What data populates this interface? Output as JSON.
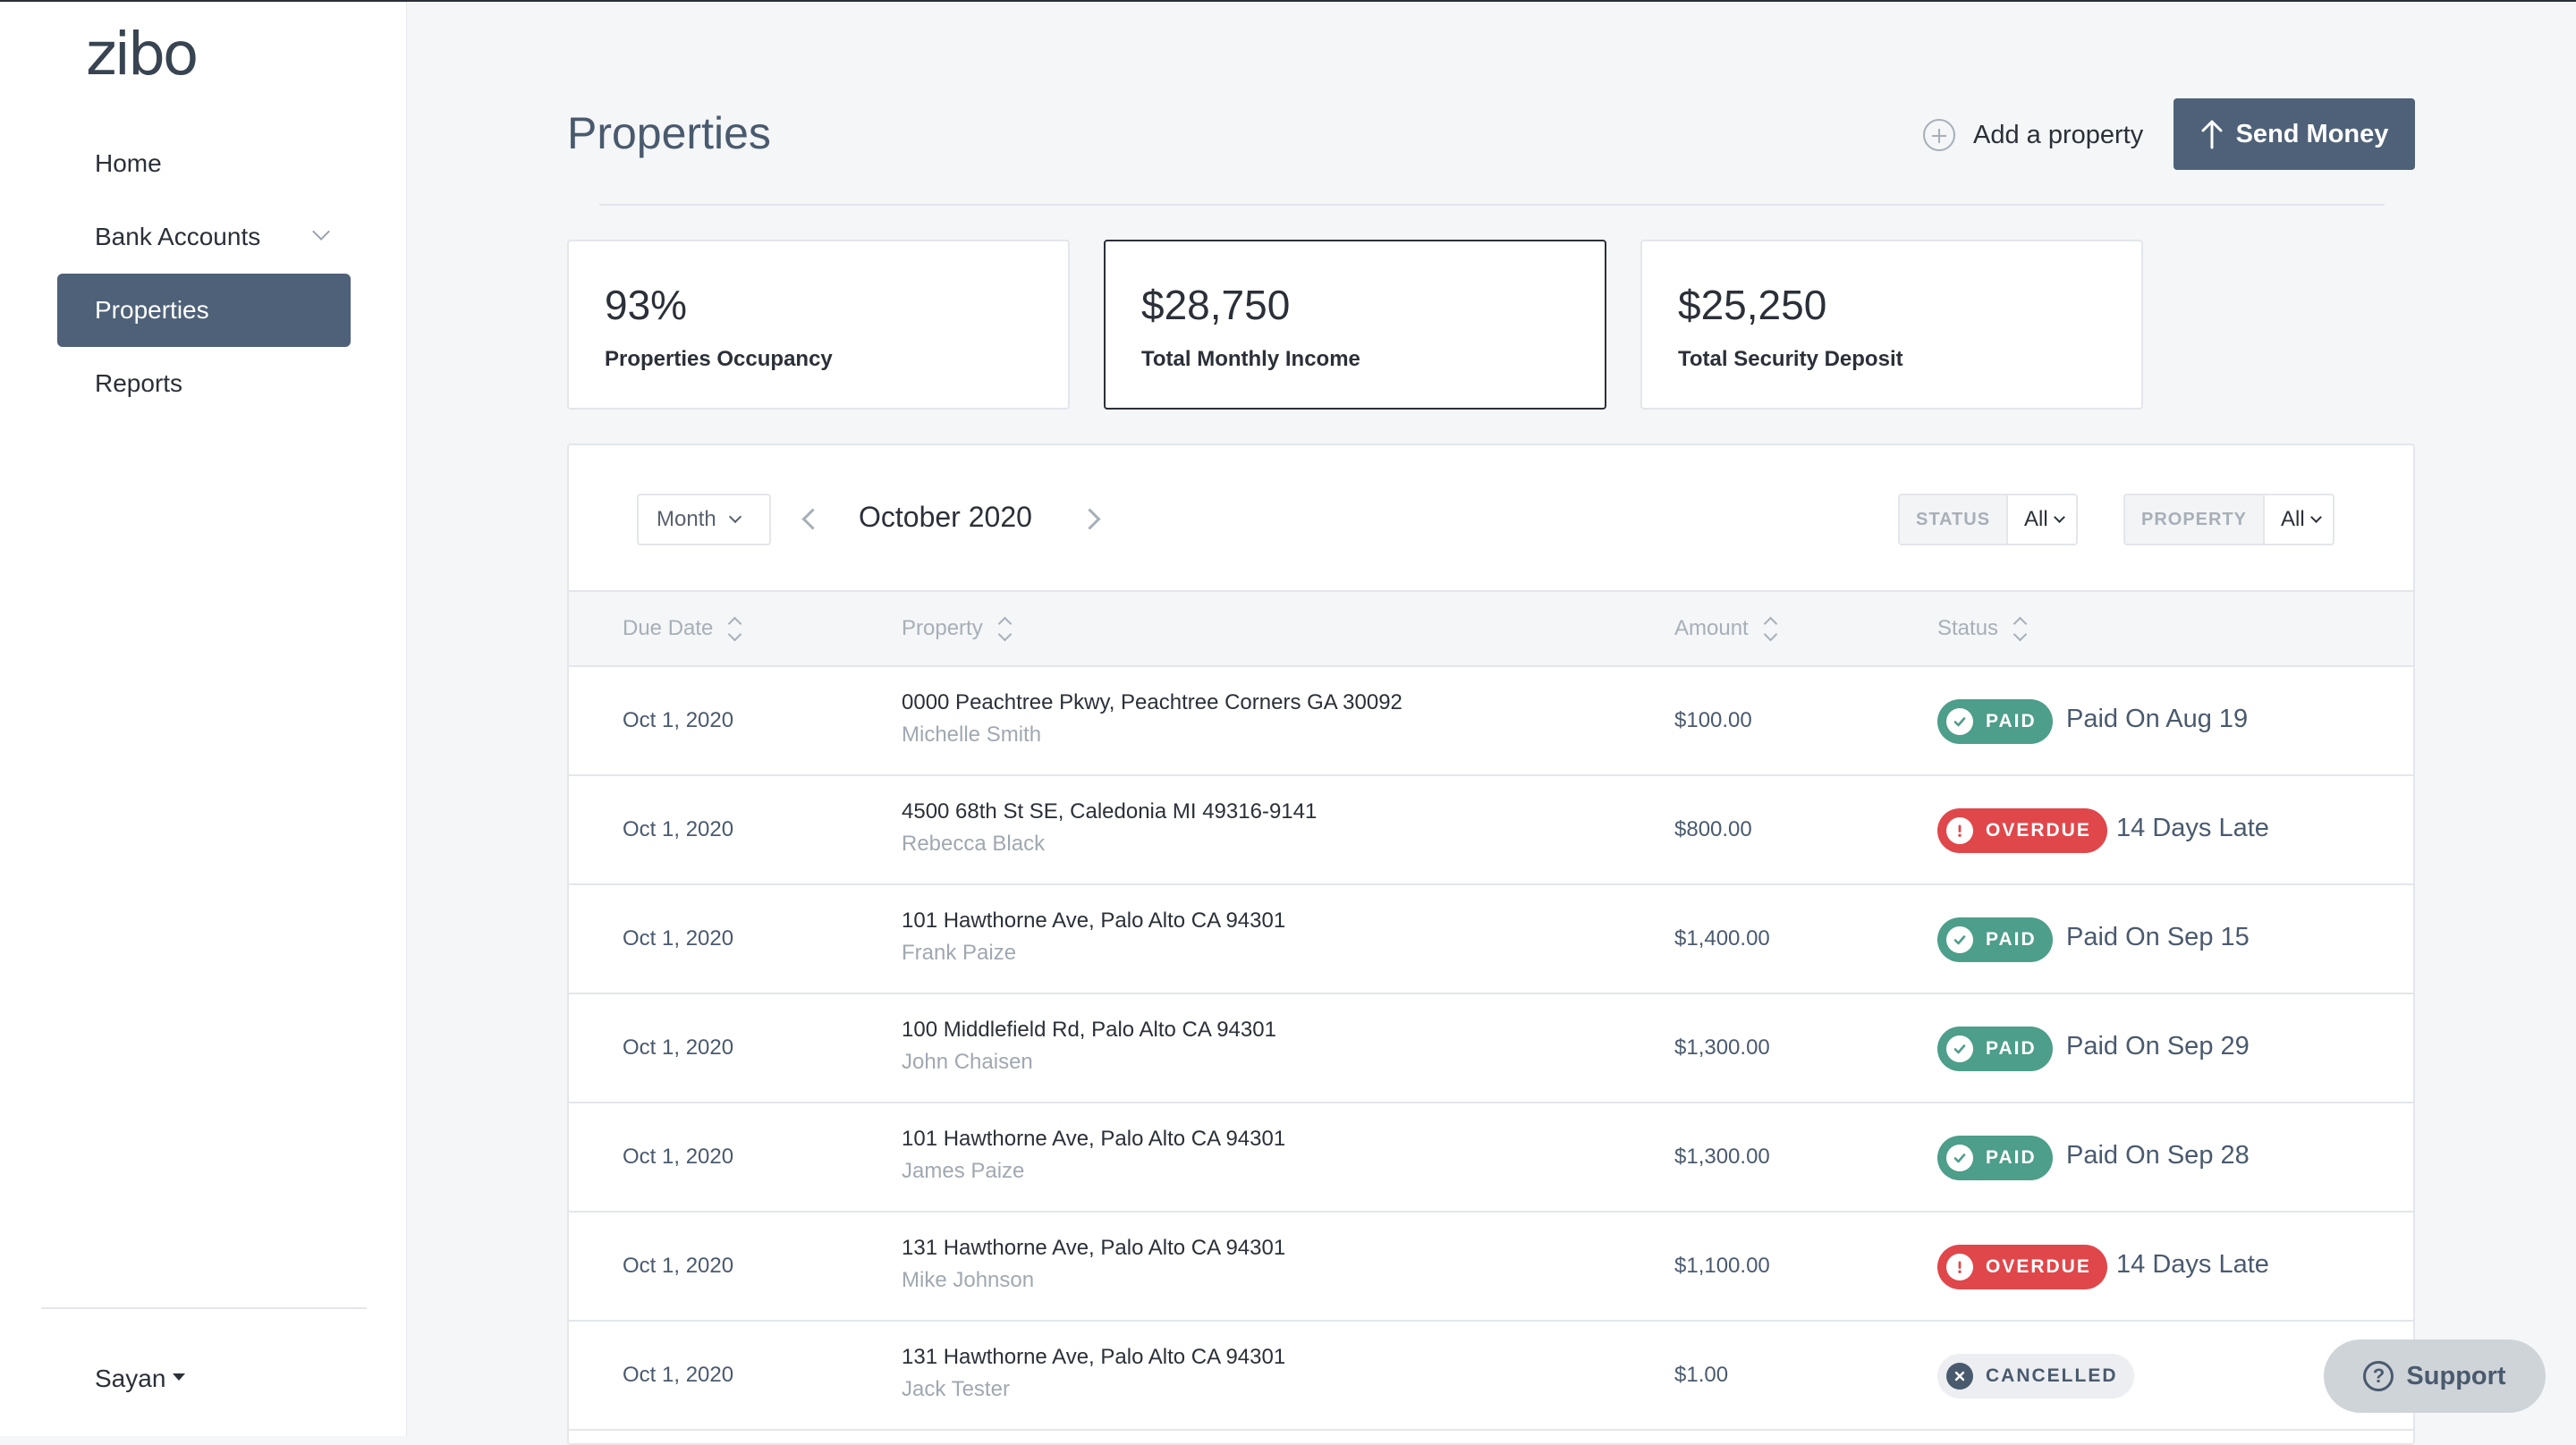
{
  "app": {
    "logo": "zibo"
  },
  "sidebar": {
    "items": [
      {
        "label": "Home"
      },
      {
        "label": "Bank Accounts"
      },
      {
        "label": "Properties"
      },
      {
        "label": "Reports"
      }
    ],
    "user": "Sayan"
  },
  "header": {
    "title": "Properties",
    "add_property": "Add a property",
    "send_money": "Send Money"
  },
  "stats": [
    {
      "value": "93%",
      "label": "Properties Occupancy"
    },
    {
      "value": "$28,750",
      "label": "Total Monthly Income"
    },
    {
      "value": "$25,250",
      "label": "Total Security Deposit"
    }
  ],
  "toolbar": {
    "period_type": "Month",
    "period": "October 2020",
    "status_filter": {
      "key": "STATUS",
      "value": "All"
    },
    "property_filter": {
      "key": "PROPERTY",
      "value": "All"
    }
  },
  "table": {
    "columns": [
      "Due Date",
      "Property",
      "Amount",
      "Status"
    ],
    "rows": [
      {
        "date": "Oct 1, 2020",
        "property": "0000 Peachtree Pkwy, Peachtree Corners GA 30092",
        "tenant": "Michelle Smith",
        "amount": "$100.00",
        "status": "PAID",
        "note": "Paid On Aug 19"
      },
      {
        "date": "Oct 1, 2020",
        "property": "4500 68th St SE, Caledonia MI 49316-9141",
        "tenant": "Rebecca Black",
        "amount": "$800.00",
        "status": "OVERDUE",
        "note": "14 Days Late"
      },
      {
        "date": "Oct 1, 2020",
        "property": "101 Hawthorne Ave, Palo Alto CA 94301",
        "tenant": "Frank Paize",
        "amount": "$1,400.00",
        "status": "PAID",
        "note": "Paid On Sep 15"
      },
      {
        "date": "Oct 1, 2020",
        "property": "100 Middlefield Rd, Palo Alto CA 94301",
        "tenant": "John Chaisen",
        "amount": "$1,300.00",
        "status": "PAID",
        "note": "Paid On Sep 29"
      },
      {
        "date": "Oct 1, 2020",
        "property": "101 Hawthorne Ave, Palo Alto CA 94301",
        "tenant": "James Paize",
        "amount": "$1,300.00",
        "status": "PAID",
        "note": "Paid On Sep 28"
      },
      {
        "date": "Oct 1, 2020",
        "property": "131 Hawthorne Ave, Palo Alto CA 94301",
        "tenant": "Mike Johnson",
        "amount": "$1,100.00",
        "status": "OVERDUE",
        "note": "14 Days Late"
      },
      {
        "date": "Oct 1, 2020",
        "property": "131 Hawthorne Ave, Palo Alto CA 94301",
        "tenant": "Jack Tester",
        "amount": "$1.00",
        "status": "CANCELLED",
        "note": ""
      }
    ]
  },
  "support": {
    "label": "Support"
  },
  "colors": {
    "primary": "#4e6178",
    "paid": "#4d9e8a",
    "overdue": "#e0474b",
    "cancelled": "#eceef1"
  }
}
